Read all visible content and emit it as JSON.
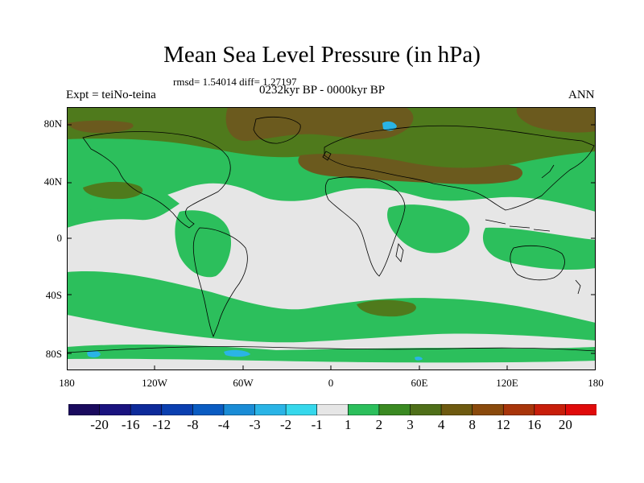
{
  "title": "Mean Sea Level Pressure (in hPa)",
  "stats_text": "rmsd= 1.54014 diff= 1.27197",
  "experiment": "Expt = teiNo-teina",
  "period": "0232kyr BP - 0000kyr BP",
  "season": "ANN",
  "lat_ticks": [
    "80N",
    "40N",
    "0",
    "40S",
    "80S"
  ],
  "lon_ticks": [
    "180",
    "120W",
    "60W",
    "0",
    "60E",
    "120E",
    "180"
  ],
  "colorbar": {
    "labels": [
      "-20",
      "-16",
      "-12",
      "-8",
      "-4",
      "-3",
      "-2",
      "-1",
      "1",
      "2",
      "3",
      "4",
      "8",
      "12",
      "16",
      "20"
    ],
    "colors": [
      "#1a0a5e",
      "#1a137f",
      "#0d2a9a",
      "#0a3fb0",
      "#0a5cc2",
      "#1a8cd6",
      "#2ab4e6",
      "#36d8ec",
      "#e6e6e6",
      "#2cbf5c",
      "#3a8a22",
      "#4f6f19",
      "#6e5a10",
      "#8a4a0c",
      "#a8350a",
      "#c81e0a",
      "#e00a0a"
    ]
  },
  "map_colors": {
    "ocean_neutral": "#e6e6e6",
    "class_2": "#2cbf5c",
    "class_3": "#4f7a1c",
    "class_4": "#6b5a1e",
    "class_neg2": "#2ab4e6",
    "coastline": "#000000"
  }
}
